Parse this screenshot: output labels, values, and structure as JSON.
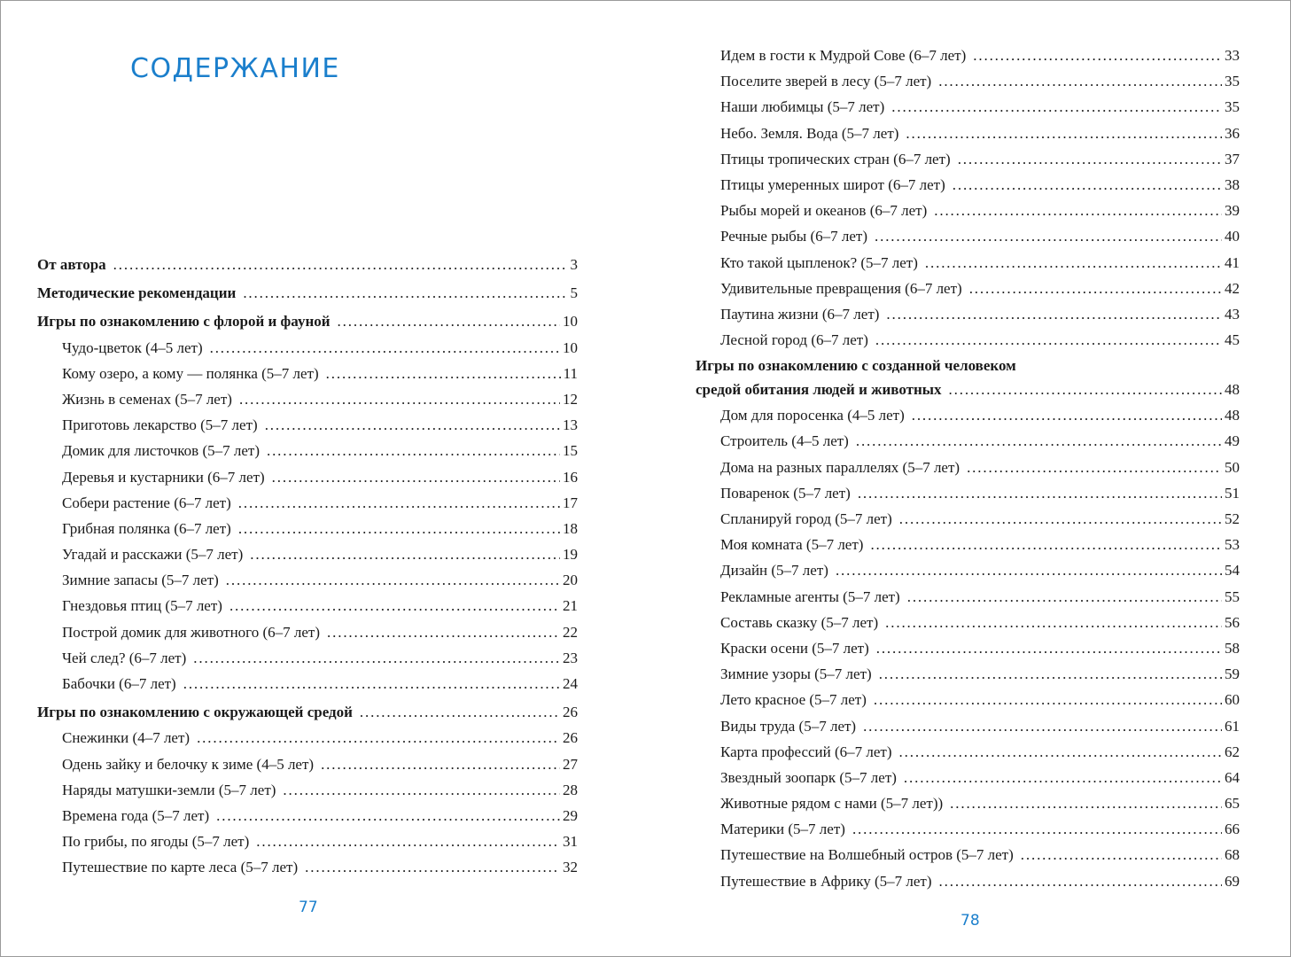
{
  "colors": {
    "accent": "#1b7fcc"
  },
  "left_page": {
    "title": "СОДЕРЖАНИЕ",
    "page_number": "77",
    "entries": [
      {
        "text": "От автора",
        "page": "3",
        "level": "section"
      },
      {
        "text": "Методические рекомендации",
        "page": "5",
        "level": "section"
      },
      {
        "text": "Игры по ознакомлению с флорой и фауной",
        "page": "10",
        "level": "section"
      },
      {
        "text": "Чудо-цветок (4–5 лет)",
        "page": "10",
        "level": "item"
      },
      {
        "text": "Кому озеро, а кому — полянка (5–7 лет)",
        "page": "11",
        "level": "item"
      },
      {
        "text": "Жизнь в семенах (5–7 лет)",
        "page": "12",
        "level": "item"
      },
      {
        "text": "Приготовь лекарство (5–7 лет)",
        "page": "13",
        "level": "item"
      },
      {
        "text": "Домик для листочков (5–7 лет)",
        "page": "15",
        "level": "item"
      },
      {
        "text": "Деревья и кустарники (6–7 лет)",
        "page": "16",
        "level": "item"
      },
      {
        "text": "Собери растение (6–7 лет)",
        "page": "17",
        "level": "item"
      },
      {
        "text": "Грибная полянка (6–7 лет)",
        "page": "18",
        "level": "item"
      },
      {
        "text": "Угадай и расскажи (5–7 лет)",
        "page": "19",
        "level": "item"
      },
      {
        "text": "Зимние запасы (5–7 лет)",
        "page": "20",
        "level": "item"
      },
      {
        "text": "Гнездовья птиц (5–7 лет)",
        "page": "21",
        "level": "item"
      },
      {
        "text": "Построй домик для животного (6–7 лет)",
        "page": "22",
        "level": "item"
      },
      {
        "text": "Чей след? (6–7 лет)",
        "page": "23",
        "level": "item"
      },
      {
        "text": "Бабочки (6–7 лет)",
        "page": "24",
        "level": "item"
      },
      {
        "text": "Игры по ознакомлению с окружающей средой",
        "page": "26",
        "level": "section"
      },
      {
        "text": "Снежинки (4–7 лет)",
        "page": "26",
        "level": "item"
      },
      {
        "text": "Одень зайку и белочку к зиме (4–5 лет)",
        "page": "27",
        "level": "item"
      },
      {
        "text": "Наряды матушки-земли (5–7 лет)",
        "page": "28",
        "level": "item"
      },
      {
        "text": "Времена года (5–7 лет)",
        "page": "29",
        "level": "item"
      },
      {
        "text": "По грибы, по ягоды (5–7 лет)",
        "page": "31",
        "level": "item"
      },
      {
        "text": "Путешествие по карте леса (5–7 лет)",
        "page": "32",
        "level": "item"
      }
    ]
  },
  "right_page": {
    "page_number": "78",
    "entries": [
      {
        "text": "Идем в гости к Мудрой Сове (6–7 лет)",
        "page": "33",
        "level": "item"
      },
      {
        "text": "Поселите зверей в лесу (5–7 лет)",
        "page": "35",
        "level": "item"
      },
      {
        "text": "Наши любимцы (5–7 лет)",
        "page": "35",
        "level": "item"
      },
      {
        "text": "Небо. Земля. Вода (5–7 лет)",
        "page": "36",
        "level": "item"
      },
      {
        "text": "Птицы тропических стран (6–7 лет)",
        "page": "37",
        "level": "item"
      },
      {
        "text": "Птицы умеренных широт (6–7 лет)",
        "page": "38",
        "level": "item"
      },
      {
        "text": "Рыбы морей и океанов (6–7 лет)",
        "page": "39",
        "level": "item"
      },
      {
        "text": "Речные рыбы (6–7 лет)",
        "page": "40",
        "level": "item"
      },
      {
        "text": "Кто такой цыпленок? (5–7 лет)",
        "page": "41",
        "level": "item"
      },
      {
        "text": "Удивительные превращения (6–7 лет)",
        "page": "42",
        "level": "item"
      },
      {
        "text": "Паутина жизни (6–7 лет)",
        "page": "43",
        "level": "item"
      },
      {
        "text": "Лесной город (6–7 лет)",
        "page": "45",
        "level": "item"
      },
      {
        "text": "Игры по ознакомлению с созданной человеком",
        "text2": "средой обитания людей и животных",
        "page": "48",
        "level": "section2"
      },
      {
        "text": "Дом для поросенка (4–5 лет)",
        "page": "48",
        "level": "item"
      },
      {
        "text": "Строитель (4–5 лет)",
        "page": "49",
        "level": "item"
      },
      {
        "text": "Дома на разных параллелях (5–7 лет)",
        "page": "50",
        "level": "item"
      },
      {
        "text": "Поваренок (5–7 лет)",
        "page": "51",
        "level": "item"
      },
      {
        "text": "Спланируй город (5–7 лет)",
        "page": "52",
        "level": "item"
      },
      {
        "text": "Моя комната (5–7 лет)",
        "page": "53",
        "level": "item"
      },
      {
        "text": "Дизайн (5–7 лет)",
        "page": "54",
        "level": "item"
      },
      {
        "text": "Рекламные агенты (5–7 лет)",
        "page": "55",
        "level": "item"
      },
      {
        "text": "Составь сказку (5–7 лет)",
        "page": "56",
        "level": "item"
      },
      {
        "text": "Краски осени (5–7 лет)",
        "page": "58",
        "level": "item"
      },
      {
        "text": "Зимние узоры (5–7 лет)",
        "page": "59",
        "level": "item"
      },
      {
        "text": "Лето красное (5–7 лет)",
        "page": "60",
        "level": "item"
      },
      {
        "text": "Виды труда (5–7 лет)",
        "page": "61",
        "level": "item"
      },
      {
        "text": "Карта профессий (6–7 лет)",
        "page": "62",
        "level": "item"
      },
      {
        "text": "Звездный зоопарк (5–7 лет)",
        "page": "64",
        "level": "item"
      },
      {
        "text": "Животные рядом с нами (5–7 лет))",
        "page": "65",
        "level": "item"
      },
      {
        "text": "Материки (5–7 лет)",
        "page": "66",
        "level": "item"
      },
      {
        "text": "Путешествие на Волшебный остров (5–7 лет)",
        "page": "68",
        "level": "item"
      },
      {
        "text": "Путешествие в Африку (5–7 лет)",
        "page": "69",
        "level": "item"
      }
    ]
  }
}
